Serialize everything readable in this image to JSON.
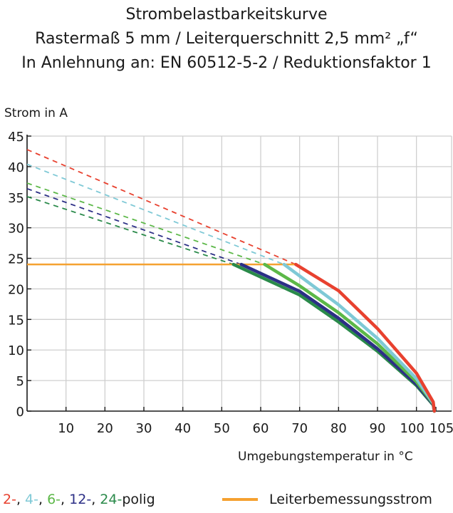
{
  "header": {
    "title": "Strombelastbarkeitskurve",
    "subtitle1": "Rastermaß 5 mm / Leiterquerschnitt 2,5 mm² „f“",
    "subtitle2": "In Anlehnung an: EN 60512-5-2 / Reduktionsfaktor 1"
  },
  "legend": {
    "poles": [
      {
        "text": "2-",
        "color": "#e8412f"
      },
      {
        "text": ", ",
        "color": "#1a1a1a"
      },
      {
        "text": "4-",
        "color": "#7fc9d6"
      },
      {
        "text": ", ",
        "color": "#1a1a1a"
      },
      {
        "text": "6-",
        "color": "#5cb848"
      },
      {
        "text": ", ",
        "color": "#1a1a1a"
      },
      {
        "text": "12-",
        "color": "#2c2f86"
      },
      {
        "text": ", ",
        "color": "#1a1a1a"
      },
      {
        "text": "24-",
        "color": "#2a8a4a"
      },
      {
        "text": "polig",
        "color": "#1a1a1a"
      }
    ],
    "rated_current_label": "Leiterbemessungsstrom",
    "rated_current_color": "#f5a130"
  },
  "chart_data": {
    "type": "line",
    "title": "Strombelastbarkeitskurve",
    "xlabel": "Umgebungstemperatur in °C",
    "ylabel": "Strom in A",
    "xlim": [
      0,
      105
    ],
    "ylim": [
      0,
      45
    ],
    "xticks": [
      10,
      20,
      30,
      40,
      50,
      60,
      70,
      80,
      90,
      100,
      105
    ],
    "yticks": [
      0,
      5,
      10,
      15,
      20,
      25,
      30,
      35,
      40,
      45
    ],
    "grid": true,
    "rated_current": {
      "name": "Leiterbemessungsstrom",
      "value": 24,
      "x": [
        0,
        69
      ],
      "color": "#f5a130"
    },
    "series": [
      {
        "name": "2-polig",
        "color": "#e8412f",
        "dashed": [
          [
            0,
            42.8
          ],
          [
            69,
            24
          ]
        ],
        "solid": [
          [
            69,
            24
          ],
          [
            80,
            19.7
          ],
          [
            90,
            13.5
          ],
          [
            100,
            6.2
          ],
          [
            104.3,
            1.5
          ],
          [
            104.6,
            0
          ]
        ]
      },
      {
        "name": "4-polig",
        "color": "#7fc9d6",
        "dashed": [
          [
            0,
            40.4
          ],
          [
            66,
            24
          ]
        ],
        "solid": [
          [
            66,
            24
          ],
          [
            80,
            17.4
          ],
          [
            90,
            11.9
          ],
          [
            100,
            5.3
          ],
          [
            104.3,
            1.3
          ],
          [
            104.6,
            0
          ]
        ]
      },
      {
        "name": "6-polig",
        "color": "#5cb848",
        "dashed": [
          [
            0,
            37.3
          ],
          [
            61,
            24
          ]
        ],
        "solid": [
          [
            61,
            24
          ],
          [
            70,
            20.5
          ],
          [
            80,
            16.1
          ],
          [
            90,
            11.0
          ],
          [
            100,
            4.8
          ],
          [
            104.3,
            1.2
          ],
          [
            104.6,
            0
          ]
        ]
      },
      {
        "name": "12-polig",
        "color": "#2c2f86",
        "dashed": [
          [
            0,
            36.4
          ],
          [
            55,
            24
          ]
        ],
        "solid": [
          [
            55,
            24
          ],
          [
            70,
            19.6
          ],
          [
            80,
            15.2
          ],
          [
            90,
            10.2
          ],
          [
            100,
            4.4
          ],
          [
            104.3,
            1.1
          ],
          [
            104.6,
            0
          ]
        ]
      },
      {
        "name": "24-polig",
        "color": "#2a8a4a",
        "dashed": [
          [
            0,
            35.1
          ],
          [
            53,
            24
          ]
        ],
        "solid": [
          [
            53,
            24
          ],
          [
            70,
            19.0
          ],
          [
            80,
            14.6
          ],
          [
            90,
            9.8
          ],
          [
            100,
            4.2
          ],
          [
            104.3,
            1.0
          ],
          [
            104.6,
            0
          ]
        ]
      }
    ]
  }
}
